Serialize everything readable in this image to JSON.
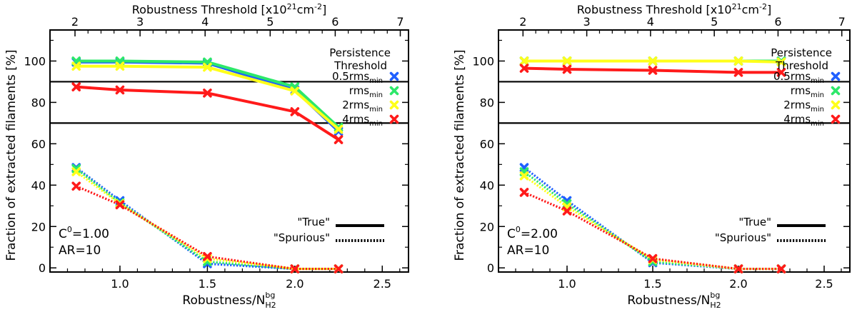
{
  "chart_data": [
    {
      "type": "line",
      "xlabel_main": "Robustness/N",
      "xlabel_sub": "H2",
      "xlabel_sup": "bg",
      "ylabel": "Fraction of extracted filaments [%]",
      "top_axis_label": "Robustness Threshold [x10",
      "top_axis_exp": "21",
      "top_axis_unit": "cm",
      "top_axis_unit_exp": "-2",
      "top_axis_close": "]",
      "xlim": [
        0.6,
        2.65
      ],
      "ylim": [
        -2,
        115
      ],
      "x_ticks": [
        1.0,
        1.5,
        2.0,
        2.5
      ],
      "x_tick_labels": [
        "1.0",
        "1.5",
        "2.0",
        "2.5"
      ],
      "y_ticks": [
        0,
        20,
        40,
        60,
        80,
        100
      ],
      "y_tick_labels": [
        "0",
        "20",
        "40",
        "60",
        "80",
        "100"
      ],
      "top_ticks_x": [
        0.743,
        1.115,
        1.487,
        1.859,
        2.231,
        2.603
      ],
      "top_tick_labels": [
        "2",
        "3",
        "4",
        "5",
        "6",
        "7"
      ],
      "hlines": [
        90,
        70
      ],
      "x": [
        0.75,
        1.0,
        1.5,
        2.0,
        2.25
      ],
      "series_true": [
        {
          "name": "0.5rms",
          "sub": "min",
          "color": "#1f5fff",
          "values": [
            99.5,
            99.5,
            99.0,
            86.0,
            66.0
          ]
        },
        {
          "name": "rms",
          "sub": "min",
          "color": "#2de86a",
          "values": [
            100,
            100,
            99.5,
            87.5,
            68.0
          ]
        },
        {
          "name": "2rms",
          "sub": "min",
          "color": "#ffff1a",
          "values": [
            97.5,
            97.5,
            97.0,
            85.5,
            67.0
          ]
        },
        {
          "name": "4rms",
          "sub": "min",
          "color": "#ff1a1a",
          "values": [
            87.5,
            86.0,
            84.5,
            75.5,
            62.0
          ]
        }
      ],
      "series_spurious": [
        {
          "name": "0.5rms",
          "color": "#1f5fff",
          "values": [
            48.5,
            32.5,
            2.0,
            -0.5,
            -0.5
          ]
        },
        {
          "name": "rms",
          "color": "#2de86a",
          "values": [
            48.0,
            31.5,
            3.0,
            -0.5,
            -0.5
          ]
        },
        {
          "name": "2rms",
          "color": "#ffff1a",
          "values": [
            46.5,
            31.0,
            4.5,
            -0.5,
            -0.5
          ]
        },
        {
          "name": "4rms",
          "color": "#ff1a1a",
          "values": [
            39.5,
            30.5,
            5.5,
            -0.5,
            -0.5
          ]
        }
      ],
      "legend_title_1": "Persistence",
      "legend_title_2": "Threshold",
      "style_true": "\"True\"",
      "style_spurious": "\"Spurious\"",
      "annotation_c": "C",
      "annotation_c_sup": "0",
      "annotation_c_val": "=1.00",
      "annotation_ar": "AR=10"
    },
    {
      "type": "line",
      "xlabel_main": "Robustness/N",
      "xlabel_sub": "H2",
      "xlabel_sup": "bg",
      "ylabel": "Fraction of extracted filaments [%]",
      "top_axis_label": "Robustness Threshold [x10",
      "top_axis_exp": "21",
      "top_axis_unit": "cm",
      "top_axis_unit_exp": "-2",
      "top_axis_close": "]",
      "xlim": [
        0.6,
        2.65
      ],
      "ylim": [
        -2,
        115
      ],
      "x_ticks": [
        1.0,
        1.5,
        2.0,
        2.5
      ],
      "x_tick_labels": [
        "1.0",
        "1.5",
        "2.0",
        "2.5"
      ],
      "y_ticks": [
        0,
        20,
        40,
        60,
        80,
        100
      ],
      "y_tick_labels": [
        "0",
        "20",
        "40",
        "60",
        "80",
        "100"
      ],
      "top_ticks_x": [
        0.743,
        1.115,
        1.487,
        1.859,
        2.231,
        2.603
      ],
      "top_tick_labels": [
        "2",
        "3",
        "4",
        "5",
        "6",
        "7"
      ],
      "hlines": [
        90,
        70
      ],
      "x": [
        0.75,
        1.0,
        1.5,
        2.0,
        2.25
      ],
      "series_true": [
        {
          "name": "0.5rms",
          "sub": "min",
          "color": "#1f5fff",
          "values": [
            100,
            100,
            100,
            100,
            100
          ]
        },
        {
          "name": "rms",
          "sub": "min",
          "color": "#2de86a",
          "values": [
            100,
            100,
            100,
            100,
            100
          ]
        },
        {
          "name": "2rms",
          "sub": "min",
          "color": "#ffff1a",
          "values": [
            100,
            100,
            100,
            100,
            99.5
          ]
        },
        {
          "name": "4rms",
          "sub": "min",
          "color": "#ff1a1a",
          "values": [
            96.5,
            96.0,
            95.5,
            94.5,
            94.5
          ]
        }
      ],
      "series_spurious": [
        {
          "name": "0.5rms",
          "color": "#1f5fff",
          "values": [
            48.5,
            32.5,
            2.5,
            -0.5,
            -0.5
          ]
        },
        {
          "name": "rms",
          "color": "#2de86a",
          "values": [
            46.5,
            31.0,
            3.0,
            -0.5,
            -0.5
          ]
        },
        {
          "name": "2rms",
          "color": "#ffff1a",
          "values": [
            44.5,
            29.5,
            4.0,
            -0.5,
            -0.5
          ]
        },
        {
          "name": "4rms",
          "color": "#ff1a1a",
          "values": [
            36.5,
            27.5,
            4.5,
            -0.5,
            -0.5
          ]
        }
      ],
      "legend_title_1": "Persistence",
      "legend_title_2": "Threshold",
      "style_true": "\"True\"",
      "style_spurious": "\"Spurious\"",
      "annotation_c": "C",
      "annotation_c_sup": "0",
      "annotation_c_val": "=2.00",
      "annotation_ar": "AR=10"
    }
  ]
}
